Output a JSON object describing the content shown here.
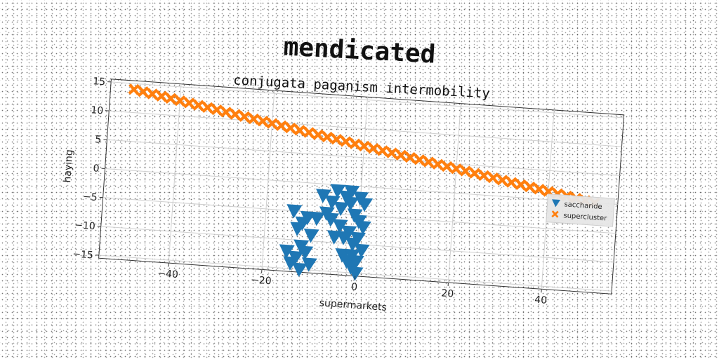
{
  "chart_data": {
    "type": "scatter",
    "title": "mendicated",
    "subtitle": "conjugata paganism intermobility",
    "xlabel": "supermarkets",
    "ylabel": "haying",
    "xlim": [
      -55,
      55
    ],
    "ylim": [
      -15.5,
      15.5
    ],
    "xticks": [
      -40,
      -20,
      0,
      20,
      40
    ],
    "yticks": [
      -15,
      -10,
      -5,
      0,
      5,
      10,
      15
    ],
    "xtick_labels": [
      "−40",
      "−20",
      "0",
      "20",
      "40"
    ],
    "ytick_labels": [
      "−15",
      "−10",
      "−5",
      "0",
      "5",
      "10",
      "15"
    ],
    "grid": true,
    "legend_position": "right",
    "series": [
      {
        "name": "saccharide",
        "marker": "triangle-down",
        "color": "#1f77b4",
        "points": [
          [
            -14,
            -5
          ],
          [
            -12,
            -7
          ],
          [
            -10,
            -9
          ],
          [
            -13,
            -8
          ],
          [
            -11,
            -6
          ],
          [
            -8,
            -2
          ],
          [
            -6,
            -3
          ],
          [
            -7,
            -5
          ],
          [
            -5,
            -1
          ],
          [
            -4,
            -4
          ],
          [
            -3,
            -2
          ],
          [
            -2,
            -3
          ],
          [
            -1,
            -5
          ],
          [
            0,
            -6
          ],
          [
            1,
            -7
          ],
          [
            -9,
            -6
          ],
          [
            -6,
            -6
          ],
          [
            -4,
            -7
          ],
          [
            -3,
            -9
          ],
          [
            -2,
            -8
          ],
          [
            -1,
            -10
          ],
          [
            0,
            -9
          ],
          [
            1,
            -11
          ],
          [
            -3,
            -12
          ],
          [
            -2,
            -13
          ],
          [
            -1,
            -14
          ],
          [
            0,
            -15
          ],
          [
            -15,
            -12
          ],
          [
            -13,
            -13
          ],
          [
            -11,
            -12
          ],
          [
            -14,
            -14
          ],
          [
            -12,
            -15
          ],
          [
            -10,
            -14
          ],
          [
            -12,
            -11
          ],
          [
            -5,
            -9
          ],
          [
            -2,
            -1
          ],
          [
            0,
            -2
          ],
          [
            1,
            -3
          ],
          [
            -1,
            -12
          ],
          [
            0,
            -13
          ]
        ]
      },
      {
        "name": "supercluster",
        "marker": "x",
        "color": "#ff7f0e",
        "points": [
          [
            -50,
            14
          ],
          [
            -48,
            13.72
          ],
          [
            -46,
            13.44
          ],
          [
            -44,
            13.16
          ],
          [
            -42,
            12.88
          ],
          [
            -40,
            12.6
          ],
          [
            -38,
            12.32
          ],
          [
            -36,
            12.04
          ],
          [
            -34,
            11.76
          ],
          [
            -32,
            11.48
          ],
          [
            -30,
            11.2
          ],
          [
            -28,
            10.92
          ],
          [
            -26,
            10.64
          ],
          [
            -24,
            10.36
          ],
          [
            -22,
            10.08
          ],
          [
            -20,
            9.8
          ],
          [
            -18,
            9.52
          ],
          [
            -16,
            9.24
          ],
          [
            -14,
            8.96
          ],
          [
            -12,
            8.68
          ],
          [
            -10,
            8.4
          ],
          [
            -8,
            8.12
          ],
          [
            -6,
            7.84
          ],
          [
            -4,
            7.56
          ],
          [
            -2,
            7.28
          ],
          [
            0,
            7
          ],
          [
            2,
            6.72
          ],
          [
            4,
            6.44
          ],
          [
            6,
            6.16
          ],
          [
            8,
            5.88
          ],
          [
            10,
            5.6
          ],
          [
            12,
            5.32
          ],
          [
            14,
            5.04
          ],
          [
            16,
            4.76
          ],
          [
            18,
            4.48
          ],
          [
            20,
            4.2
          ],
          [
            22,
            3.92
          ],
          [
            24,
            3.64
          ],
          [
            26,
            3.36
          ],
          [
            28,
            3.08
          ],
          [
            30,
            2.8
          ],
          [
            32,
            2.52
          ],
          [
            34,
            2.24
          ],
          [
            36,
            1.96
          ],
          [
            38,
            1.68
          ],
          [
            40,
            1.4
          ],
          [
            42,
            1.12
          ],
          [
            44,
            0.84
          ],
          [
            46,
            0.56
          ],
          [
            48,
            0.28
          ],
          [
            50,
            0
          ]
        ]
      }
    ]
  }
}
